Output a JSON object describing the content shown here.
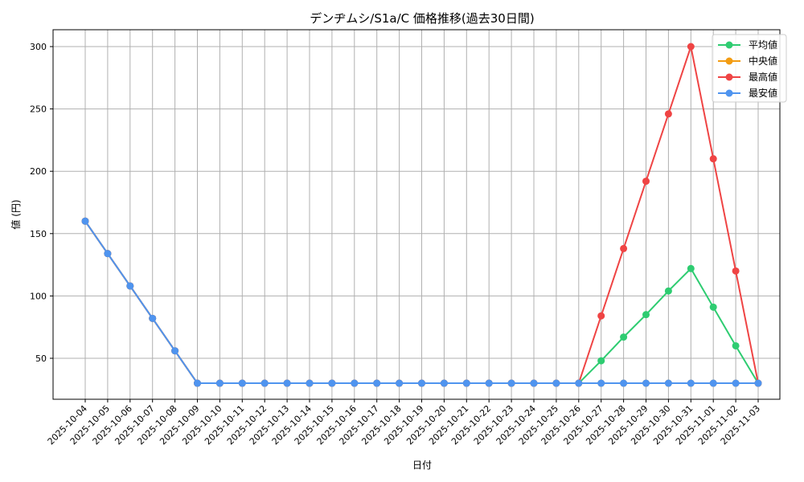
{
  "chart_data": {
    "type": "line",
    "title": "デンヂムシ/S1a/C 価格推移(過去30日間)",
    "xlabel": "日付",
    "ylabel": "値 (円)",
    "ylim": [
      15,
      313
    ],
    "yticks": [
      50,
      100,
      150,
      200,
      250,
      300
    ],
    "grid": true,
    "legend_position": "upper right",
    "categories": [
      "2025-10-04",
      "2025-10-05",
      "2025-10-06",
      "2025-10-07",
      "2025-10-08",
      "2025-10-09",
      "2025-10-10",
      "2025-10-11",
      "2025-10-12",
      "2025-10-13",
      "2025-10-14",
      "2025-10-15",
      "2025-10-16",
      "2025-10-17",
      "2025-10-18",
      "2025-10-19",
      "2025-10-20",
      "2025-10-21",
      "2025-10-22",
      "2025-10-23",
      "2025-10-24",
      "2025-10-25",
      "2025-10-26",
      "2025-10-27",
      "2025-10-28",
      "2025-10-29",
      "2025-10-30",
      "2025-10-31",
      "2025-11-01",
      "2025-11-02",
      "2025-11-03"
    ],
    "series": [
      {
        "name": "平均値",
        "color": "#2ecc71",
        "values": [
          160,
          134,
          108,
          82,
          56,
          30,
          30,
          30,
          30,
          30,
          30,
          30,
          30,
          30,
          30,
          30,
          30,
          30,
          30,
          30,
          30,
          30,
          30,
          48,
          67,
          85,
          104,
          122,
          91,
          60,
          30
        ]
      },
      {
        "name": "中央値",
        "color": "#f39c12",
        "values": [
          160,
          134,
          108,
          82,
          56,
          30,
          30,
          30,
          30,
          30,
          30,
          30,
          30,
          30,
          30,
          30,
          30,
          30,
          30,
          30,
          30,
          30,
          30,
          30,
          30,
          30,
          30,
          30,
          30,
          30,
          30
        ]
      },
      {
        "name": "最高値",
        "color": "#ef4444",
        "values": [
          160,
          134,
          108,
          82,
          56,
          30,
          30,
          30,
          30,
          30,
          30,
          30,
          30,
          30,
          30,
          30,
          30,
          30,
          30,
          30,
          30,
          30,
          30,
          84,
          138,
          192,
          246,
          300,
          210,
          120,
          30
        ]
      },
      {
        "name": "最安値",
        "color": "#4f94ef",
        "values": [
          160,
          134,
          108,
          82,
          56,
          30,
          30,
          30,
          30,
          30,
          30,
          30,
          30,
          30,
          30,
          30,
          30,
          30,
          30,
          30,
          30,
          30,
          30,
          30,
          30,
          30,
          30,
          30,
          30,
          30,
          30
        ]
      }
    ]
  }
}
